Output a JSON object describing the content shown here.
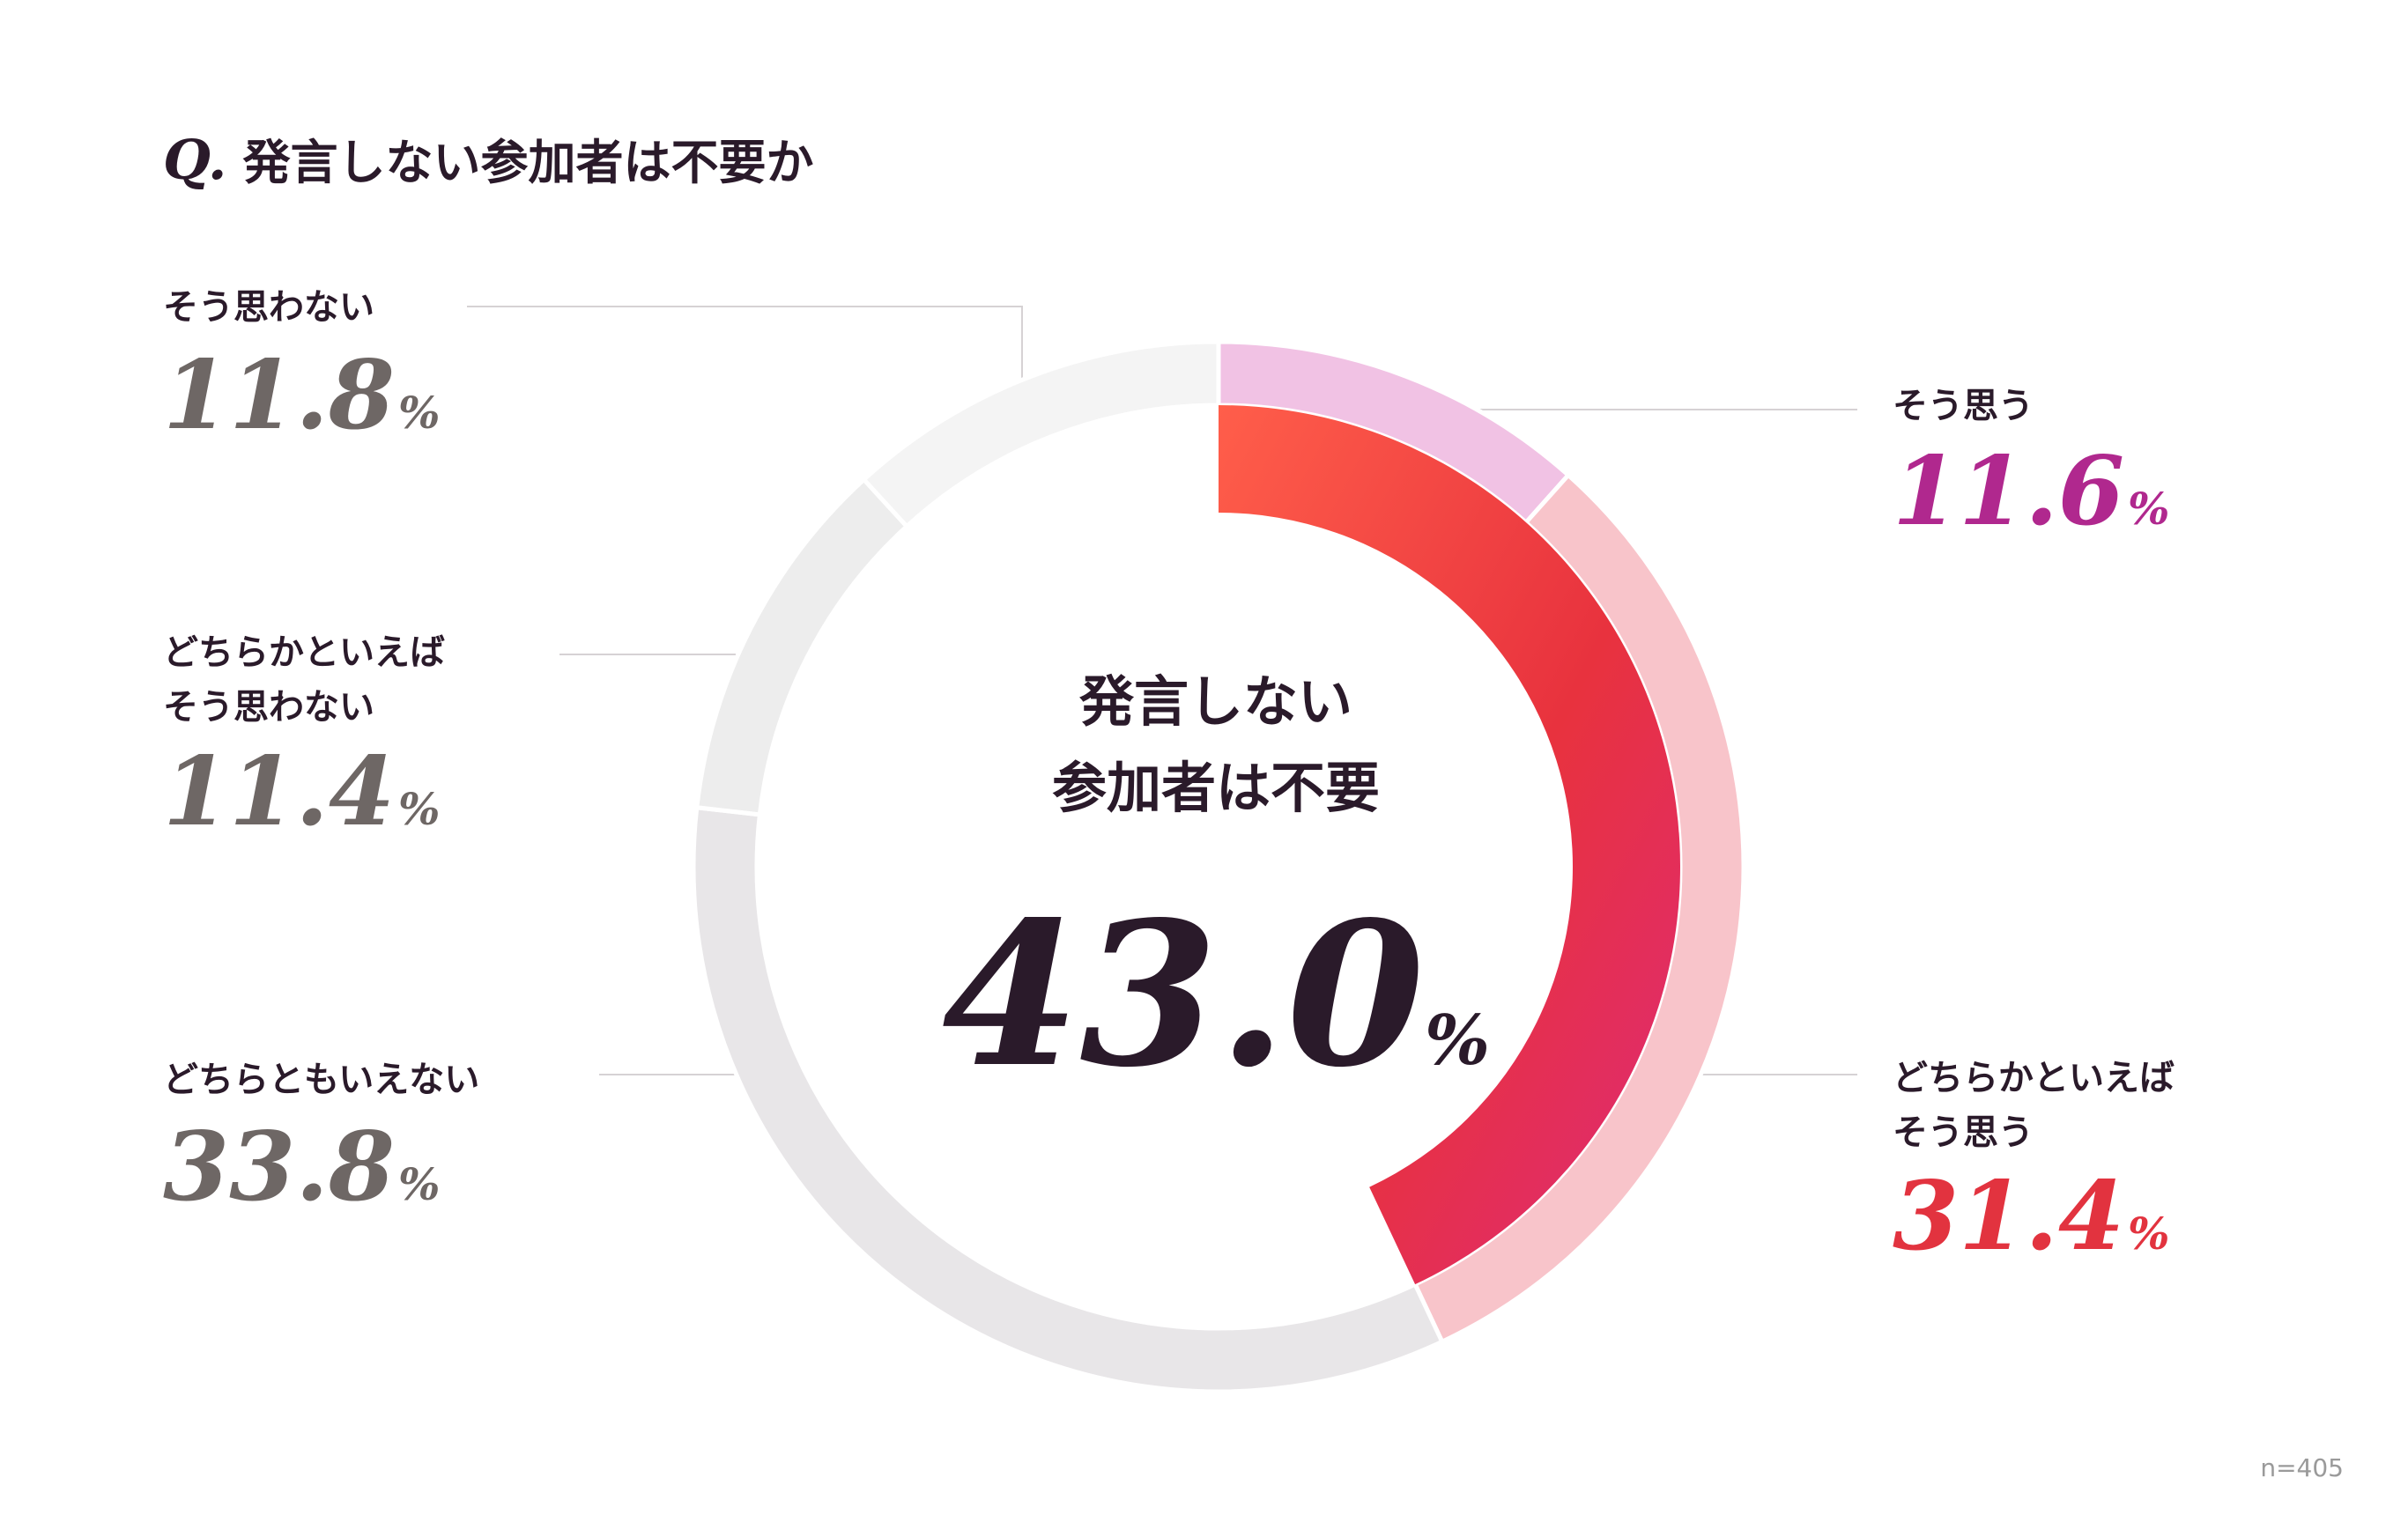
{
  "title": {
    "prefix": "Q.",
    "text": "発言しない参加者は不要か"
  },
  "center": {
    "label_line1": "発言しない",
    "label_line2": "参加者は不要",
    "value": "43.0",
    "unit": "%"
  },
  "sample_size": "n=405",
  "colors": {
    "agree": "#f1c2e4",
    "somewhat_agree": "#f8c4ca",
    "neutral": "#e8e6e8",
    "somewhat_disagree": "#ededed",
    "disagree": "#f4f4f4",
    "inner_gradient_start": "#ff5e4a",
    "inner_gradient_mid": "#e8323e",
    "inner_gradient_end": "#de2a78",
    "agree_text": "#b0288e",
    "somewhat_agree_text": "#e2333f",
    "disagree_text": "#6e6765"
  },
  "chart_data": {
    "type": "pie",
    "title": "発言しない参加者は不要か",
    "categories": [
      "そう思う",
      "どちらかといえばそう思う",
      "どちらともいえない",
      "どちらかといえばそう思わない",
      "そう思わない"
    ],
    "series": [
      {
        "values": [
          11.6,
          31.4,
          33.8,
          11.4,
          11.8
        ]
      }
    ],
    "unit": "%",
    "highlight_total": 43.0,
    "legend": "none",
    "sample_size": 405
  },
  "labels": [
    {
      "line1": "そう思う",
      "line2": "",
      "value": "11.6",
      "unit": "%"
    },
    {
      "line1": "どちらかといえば",
      "line2": "そう思う",
      "value": "31.4",
      "unit": "%"
    },
    {
      "line1": "どちらともいえない",
      "line2": "",
      "value": "33.8",
      "unit": "%"
    },
    {
      "line1": "どちらかといえば",
      "line2": "そう思わない",
      "value": "11.4",
      "unit": "%"
    },
    {
      "line1": "そう思わない",
      "line2": "",
      "value": "11.8",
      "unit": "%"
    }
  ]
}
